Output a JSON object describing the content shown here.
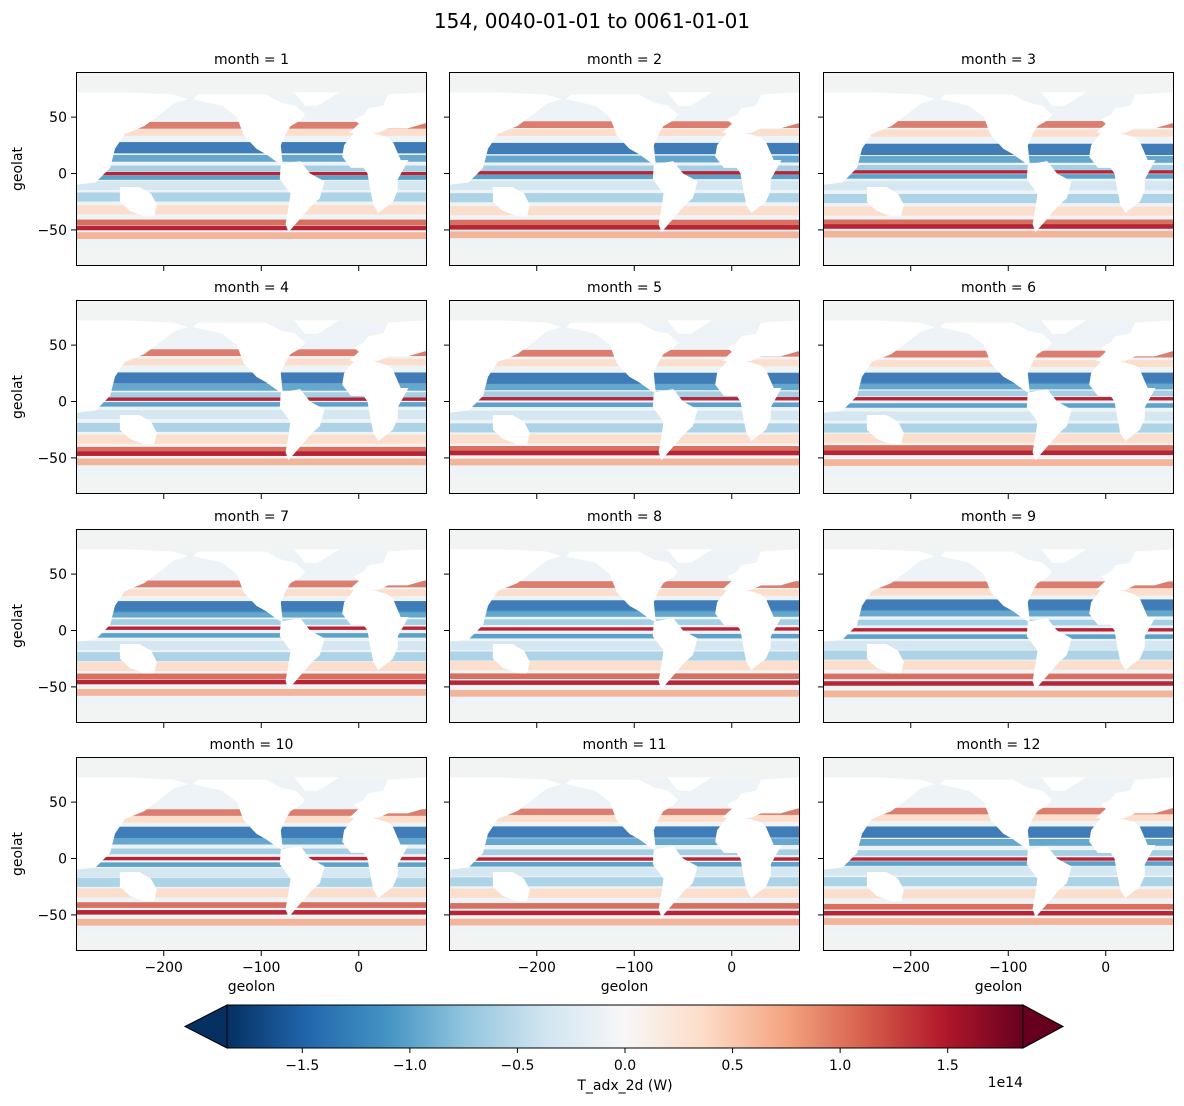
{
  "chart_data": {
    "type": "heatmap",
    "title": "154, 0040-01-01 to 0061-01-01",
    "panels": [
      {
        "title": "month = 1"
      },
      {
        "title": "month = 2"
      },
      {
        "title": "month = 3"
      },
      {
        "title": "month = 4"
      },
      {
        "title": "month = 5"
      },
      {
        "title": "month = 6"
      },
      {
        "title": "month = 7"
      },
      {
        "title": "month = 8"
      },
      {
        "title": "month = 9"
      },
      {
        "title": "month = 10"
      },
      {
        "title": "month = 11"
      },
      {
        "title": "month = 12"
      }
    ],
    "xlabel": "geolon",
    "ylabel": "geolat",
    "xlim": [
      -290,
      70
    ],
    "ylim": [
      -82,
      90
    ],
    "xticks": [
      -200,
      -100,
      0
    ],
    "xtick_labels": [
      "−200",
      "−100",
      "0"
    ],
    "yticks": [
      50,
      0,
      -50
    ],
    "ytick_labels": [
      "50",
      "0",
      "−50"
    ],
    "colorbar": {
      "label": "T_adx_2d (W)",
      "scale_label": "1e14",
      "range": [
        -1.85,
        1.85
      ],
      "ticks": [
        -1.5,
        -1.0,
        -0.5,
        0.0,
        0.5,
        1.0,
        1.5
      ],
      "tick_labels": [
        "−1.5",
        "−1.0",
        "−0.5",
        "0.0",
        "0.5",
        "1.0",
        "1.5"
      ],
      "extend": "both",
      "colormap": "RdBu_r",
      "colors": [
        "#053061",
        "#2166ac",
        "#4393c3",
        "#92c5de",
        "#d1e5f0",
        "#f7f7f7",
        "#fddbc7",
        "#f4a582",
        "#d6604d",
        "#b2182b",
        "#67001f"
      ]
    },
    "grid": false
  }
}
